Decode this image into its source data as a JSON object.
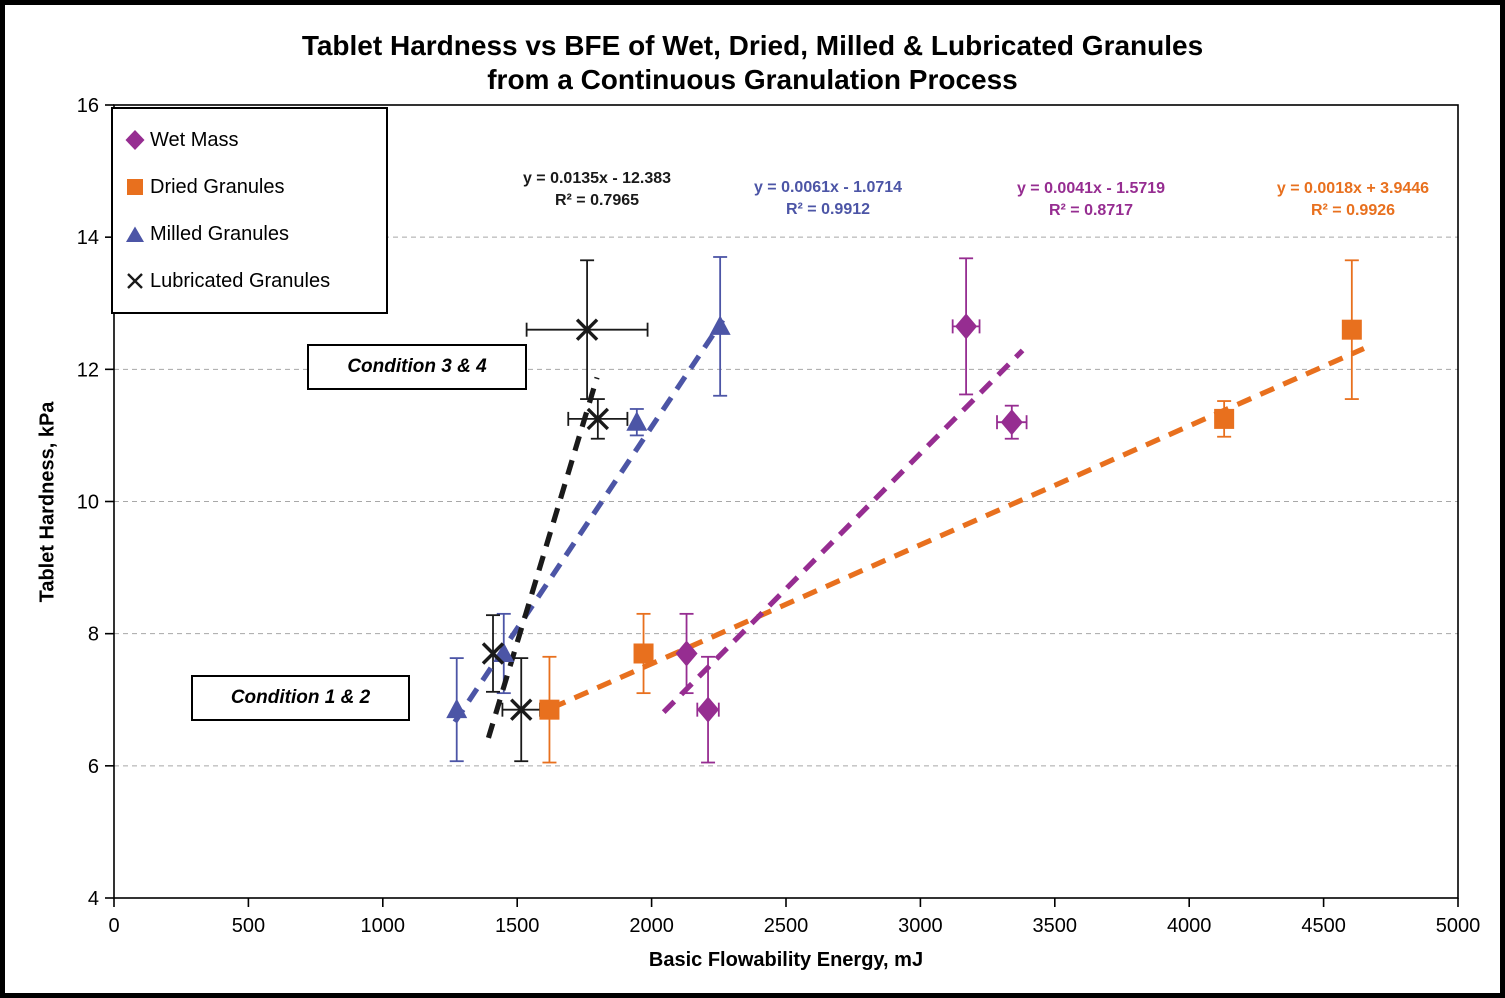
{
  "title": {
    "line1": "Tablet Hardness vs BFE of Wet, Dried, Milled & Lubricated Granules",
    "line2": "from a Continuous Granulation Process"
  },
  "axes": {
    "x": {
      "label": "Basic Flowability Energy, mJ",
      "min": 0,
      "max": 5000,
      "ticks": [
        0,
        500,
        1000,
        1500,
        2000,
        2500,
        3000,
        3500,
        4000,
        4500,
        5000
      ]
    },
    "y": {
      "label": "Tablet Hardness, kPa",
      "min": 4,
      "max": 16,
      "ticks": [
        4,
        6,
        8,
        10,
        12,
        14,
        16
      ]
    }
  },
  "legend": {
    "items": [
      {
        "label": "Wet Mass",
        "marker": "diamond",
        "color": "#962D91"
      },
      {
        "label": "Dried Granules",
        "marker": "square",
        "color": "#E8701E"
      },
      {
        "label": "Milled Granules",
        "marker": "triangle",
        "color": "#4C55A6"
      },
      {
        "label": "Lubricated Granules",
        "marker": "xmark",
        "color": "#1A1A1A"
      }
    ]
  },
  "annotations": [
    {
      "text": "Condition 3 & 4"
    },
    {
      "text": "Condition 1 & 2"
    }
  ],
  "equations": [
    {
      "line1": "y = 0.0135x - 12.383",
      "line2": "R² = 0.7965",
      "color": "#1A1A1A"
    },
    {
      "line1": "y = 0.0061x - 1.0714",
      "line2": "R² = 0.9912",
      "color": "#4C55A6"
    },
    {
      "line1": "y = 0.0041x - 1.5719",
      "line2": "R² = 0.8717",
      "color": "#962D91"
    },
    {
      "line1": "y = 0.0018x + 3.9446",
      "line2": "R² = 0.9926",
      "color": "#E8701E"
    }
  ],
  "chart_data": {
    "type": "scatter",
    "title": "Tablet Hardness vs BFE of Wet, Dried, Milled & Lubricated Granules from a Continuous Granulation Process",
    "xlabel": "Basic Flowability Energy, mJ",
    "ylabel": "Tablet Hardness, kPa",
    "xlim": [
      0,
      5000
    ],
    "ylim": [
      4,
      16
    ],
    "grid": "horizontal-dashed",
    "legend_position": "top-left",
    "series": [
      {
        "name": "Wet Mass",
        "marker": "diamond",
        "color": "#962D91",
        "points": [
          {
            "x": 2130,
            "y": 7.7,
            "yerr": 0.6
          },
          {
            "x": 2210,
            "y": 6.85,
            "yerr": 0.8,
            "xerr": 40
          },
          {
            "x": 3170,
            "y": 12.65,
            "yerr": 1.03,
            "xerr": 50
          },
          {
            "x": 3340,
            "y": 11.2,
            "yerr": 0.25,
            "xerr": 55
          }
        ],
        "trend": {
          "slope": 0.0041,
          "intercept": -1.5719,
          "x1": 2045,
          "x2": 3380,
          "equation": "y = 0.0041x - 1.5719",
          "r2": 0.8717
        }
      },
      {
        "name": "Dried Granules",
        "marker": "square",
        "color": "#E8701E",
        "points": [
          {
            "x": 1620,
            "y": 6.85,
            "yerr": 0.8
          },
          {
            "x": 1970,
            "y": 7.7,
            "yerr": 0.6
          },
          {
            "x": 4130,
            "y": 11.25,
            "yerr": 0.27
          },
          {
            "x": 4605,
            "y": 12.6,
            "yerr": 1.05
          }
        ],
        "trend": {
          "slope": 0.0018,
          "intercept": 3.9446,
          "x1": 1628,
          "x2": 4650,
          "equation": "y = 0.0018x + 3.9446",
          "r2": 0.9926
        }
      },
      {
        "name": "Milled Granules",
        "marker": "triangle",
        "color": "#4C55A6",
        "points": [
          {
            "x": 1275,
            "y": 6.85,
            "yerr": 0.78
          },
          {
            "x": 1450,
            "y": 7.7,
            "yerr": 0.6
          },
          {
            "x": 1945,
            "y": 11.2,
            "yerr": 0.2
          },
          {
            "x": 2255,
            "y": 12.65,
            "yerr": 1.05
          }
        ],
        "trend": {
          "slope": 0.0061,
          "intercept": -1.0714,
          "x1": 1268,
          "x2": 2265,
          "equation": "y = 0.0061x - 1.0714",
          "r2": 0.9912
        }
      },
      {
        "name": "Lubricated Granules",
        "marker": "xmark",
        "color": "#1A1A1A",
        "points": [
          {
            "x": 1410,
            "y": 7.7,
            "yerr": 0.58
          },
          {
            "x": 1515,
            "y": 6.85,
            "yerr": 0.78,
            "xerr": 70
          },
          {
            "x": 1800,
            "y": 11.25,
            "yerr": 0.3,
            "xerr": 110
          },
          {
            "x": 1760,
            "y": 12.6,
            "yerr": 1.05,
            "xerr": 225
          }
        ],
        "trend": {
          "slope": 0.0135,
          "intercept": -12.383,
          "x1": 1393,
          "x2": 1797,
          "equation": "y = 0.0135x - 12.383",
          "r2": 0.7965
        }
      }
    ]
  }
}
